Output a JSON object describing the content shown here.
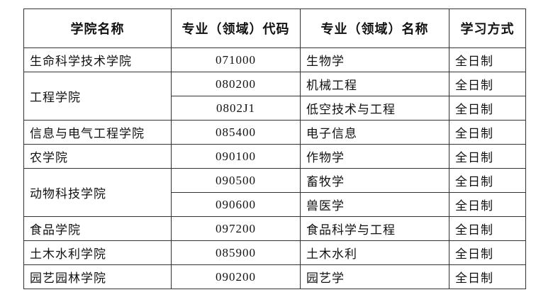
{
  "headers": [
    "学院名称",
    "专业（领域）代码",
    "专业（领域）名称",
    "学习方式"
  ],
  "rows": [
    {
      "college": "生命科学技术学院",
      "majors": [
        {
          "code": "071000",
          "name": "生物学",
          "mode": "全日制"
        }
      ]
    },
    {
      "college": "工程学院",
      "majors": [
        {
          "code": "080200",
          "name": "机械工程",
          "mode": "全日制"
        },
        {
          "code": "0802J1",
          "name": "低空技术与工程",
          "mode": "全日制"
        }
      ]
    },
    {
      "college": "信息与电气工程学院",
      "majors": [
        {
          "code": "085400",
          "name": "电子信息",
          "mode": "全日制"
        }
      ]
    },
    {
      "college": "农学院",
      "majors": [
        {
          "code": "090100",
          "name": "作物学",
          "mode": "全日制"
        }
      ]
    },
    {
      "college": "动物科技学院",
      "majors": [
        {
          "code": "090500",
          "name": "畜牧学",
          "mode": "全日制"
        },
        {
          "code": "090600",
          "name": "兽医学",
          "mode": "全日制"
        }
      ]
    },
    {
      "college": "食品学院",
      "majors": [
        {
          "code": "097200",
          "name": "食品科学与工程",
          "mode": "全日制"
        }
      ]
    },
    {
      "college": "土木水利学院",
      "majors": [
        {
          "code": "085900",
          "name": "土木水利",
          "mode": "全日制"
        }
      ]
    },
    {
      "college": "园艺园林学院",
      "majors": [
        {
          "code": "090200",
          "name": "园艺学",
          "mode": "全日制"
        }
      ]
    }
  ]
}
